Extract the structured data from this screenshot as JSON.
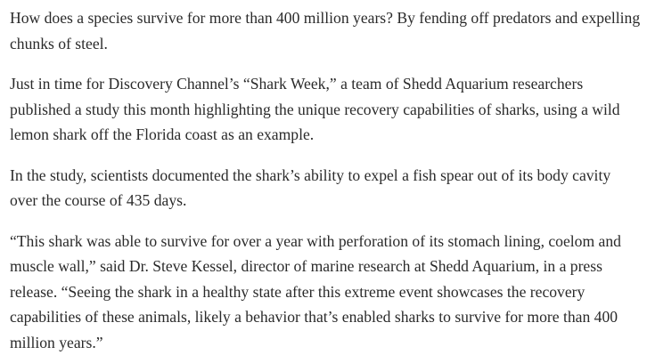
{
  "article": {
    "paragraphs": [
      "How does a species survive for more than 400 million years? By fending off predators and expelling chunks of steel.",
      "Just in time for Discovery Channel’s “Shark Week,” a team of Shedd Aquarium researchers published a study this month highlighting the unique recovery capabilities of sharks, using a wild lemon shark off the Florida coast as an example.",
      "In the study, scientists documented the shark’s ability to expel a fish spear out of its body cavity over the course of 435 days.",
      "“This shark was able to survive for over a year with perforation of its stomach lining, coelom and muscle wall,” said Dr. Steve Kessel, director of marine research at Shedd Aquarium, in a press release. “Seeing the shark in a healthy state after this extreme event showcases the recovery capabilities of these animals, likely a behavior that’s enabled sharks to survive for more than 400 million years.”"
    ]
  }
}
